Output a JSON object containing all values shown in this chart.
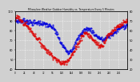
{
  "title": "Milwaukee Weather Outdoor Humidity vs. Temperature Every 5 Minutes",
  "bg_color": "#d0d0d0",
  "plot_bg_color": "#d0d0d0",
  "grid_color": "#ffffff",
  "humidity_color": "#0000dd",
  "temp_color": "#dd0000",
  "ylim_humidity": [
    40,
    100
  ],
  "ylim_temp": [
    20,
    80
  ],
  "xlim": [
    0,
    287
  ],
  "n": 288,
  "humidity_keypoints": [
    [
      0,
      90
    ],
    [
      10,
      90
    ],
    [
      25,
      90
    ],
    [
      40,
      88
    ],
    [
      60,
      88
    ],
    [
      80,
      86
    ],
    [
      100,
      82
    ],
    [
      115,
      68
    ],
    [
      125,
      62
    ],
    [
      135,
      58
    ],
    [
      145,
      60
    ],
    [
      155,
      68
    ],
    [
      165,
      75
    ],
    [
      175,
      80
    ],
    [
      185,
      82
    ],
    [
      195,
      80
    ],
    [
      205,
      75
    ],
    [
      215,
      72
    ],
    [
      225,
      70
    ],
    [
      235,
      73
    ],
    [
      245,
      76
    ],
    [
      255,
      78
    ],
    [
      265,
      82
    ],
    [
      275,
      84
    ],
    [
      287,
      86
    ]
  ],
  "temp_keypoints": [
    [
      0,
      72
    ],
    [
      5,
      74
    ],
    [
      10,
      72
    ],
    [
      15,
      70
    ],
    [
      20,
      68
    ],
    [
      30,
      65
    ],
    [
      40,
      60
    ],
    [
      50,
      55
    ],
    [
      60,
      50
    ],
    [
      70,
      44
    ],
    [
      80,
      40
    ],
    [
      90,
      36
    ],
    [
      100,
      32
    ],
    [
      110,
      28
    ],
    [
      120,
      26
    ],
    [
      130,
      28
    ],
    [
      140,
      32
    ],
    [
      150,
      38
    ],
    [
      160,
      46
    ],
    [
      165,
      50
    ],
    [
      170,
      54
    ],
    [
      175,
      56
    ],
    [
      180,
      58
    ],
    [
      185,
      56
    ],
    [
      190,
      54
    ],
    [
      195,
      52
    ],
    [
      200,
      50
    ],
    [
      205,
      48
    ],
    [
      210,
      46
    ],
    [
      215,
      44
    ],
    [
      220,
      44
    ],
    [
      225,
      46
    ],
    [
      230,
      50
    ],
    [
      235,
      54
    ],
    [
      240,
      56
    ],
    [
      245,
      58
    ],
    [
      250,
      60
    ],
    [
      255,
      62
    ],
    [
      260,
      64
    ],
    [
      265,
      65
    ],
    [
      270,
      66
    ],
    [
      275,
      67
    ],
    [
      280,
      68
    ],
    [
      287,
      70
    ]
  ]
}
